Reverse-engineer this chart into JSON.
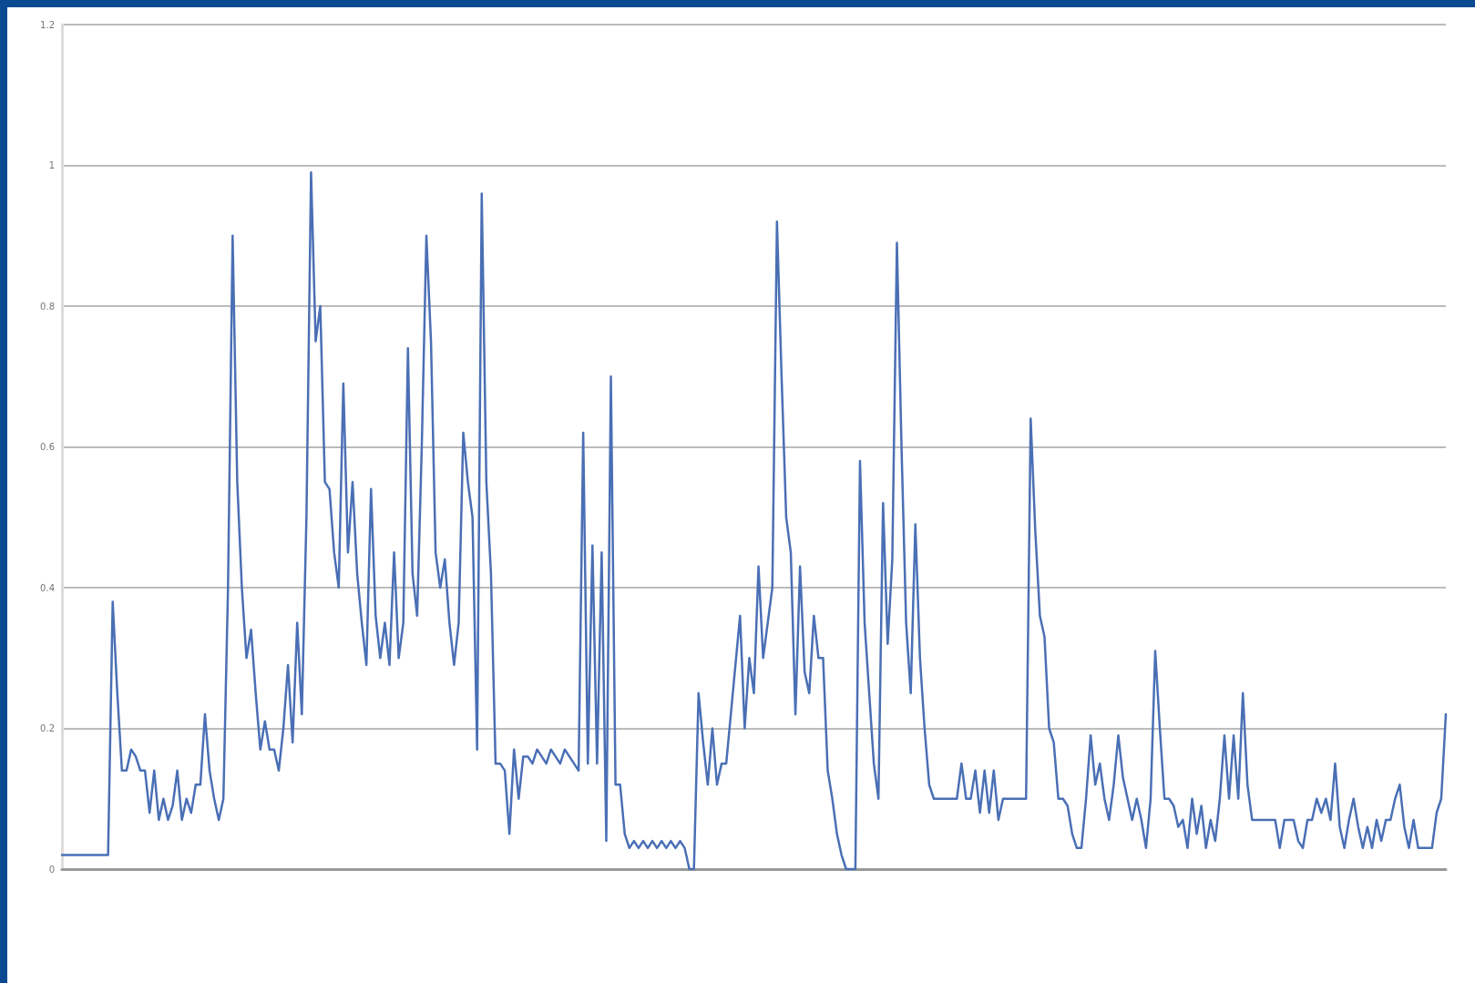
{
  "chart_data": {
    "type": "line",
    "categories": [
      null,
      null,
      null,
      null,
      null,
      null,
      null,
      null,
      null,
      null,
      null,
      null,
      null,
      null,
      null,
      null,
      null,
      null,
      null,
      null,
      null,
      null,
      null,
      null,
      null,
      null,
      null,
      null,
      null,
      null,
      null,
      null,
      null,
      null,
      null,
      null,
      null,
      null,
      null,
      null,
      null,
      null,
      null,
      null,
      null,
      null,
      null,
      null,
      null,
      null,
      null,
      null,
      null,
      null,
      null,
      null,
      null,
      null,
      null,
      null,
      null,
      null,
      null,
      null,
      null,
      null,
      null,
      null,
      null,
      null,
      null,
      null,
      null,
      null,
      null,
      null,
      null,
      null,
      null,
      null,
      null,
      null,
      null,
      null,
      null,
      null,
      null,
      null,
      null,
      null,
      null,
      null,
      null,
      null,
      null,
      null,
      null,
      null,
      null,
      null,
      null,
      null,
      null,
      null,
      null,
      null,
      null,
      null,
      null,
      null,
      null,
      null,
      null,
      null,
      null,
      null,
      null,
      null,
      null,
      null,
      null,
      null,
      null,
      null,
      null,
      null,
      null,
      null,
      null,
      null,
      null,
      null,
      null,
      null,
      null,
      null,
      null,
      null,
      null,
      null,
      null,
      null,
      null,
      null,
      null,
      null,
      null,
      null,
      null,
      null,
      null,
      null,
      null,
      null,
      null,
      null,
      null,
      null,
      null,
      null,
      null,
      null,
      null,
      null,
      null,
      null,
      null,
      null,
      null,
      null,
      null,
      null,
      null,
      null,
      null,
      null,
      null,
      null,
      null,
      null,
      null,
      null,
      null,
      null,
      null,
      null,
      null,
      null,
      null,
      null,
      null,
      null,
      null,
      null,
      null,
      null,
      null,
      null,
      null,
      null,
      null,
      null,
      null,
      null,
      null,
      null,
      null,
      null,
      null,
      null,
      null,
      null,
      null,
      null,
      null,
      null,
      null,
      null,
      null,
      null,
      null,
      null,
      null,
      null,
      null,
      null,
      null,
      null,
      null,
      null,
      null,
      null,
      null,
      null,
      null,
      null,
      null,
      null,
      null,
      null,
      null,
      null,
      null,
      null,
      null,
      null,
      null,
      null,
      null,
      null,
      null,
      null,
      null,
      null,
      null,
      null,
      null,
      null,
      null,
      null,
      null,
      null,
      null,
      null,
      null,
      null,
      null,
      null,
      null,
      null,
      null,
      null,
      null,
      null,
      null,
      null,
      null,
      null,
      null,
      null,
      null,
      null,
      null,
      null,
      null,
      null,
      null,
      null,
      null,
      null,
      null,
      null,
      null,
      null,
      null,
      null,
      null,
      null,
      null,
      null,
      null
    ],
    "series": [
      {
        "color": "#4a6fb5",
        "values": [
          0.02,
          0.02,
          0.02,
          0.02,
          0.02,
          0.02,
          0.02,
          0.02,
          0.02,
          0.02,
          0.02,
          0.38,
          0.25,
          0.14,
          0.14,
          0.17,
          0.16,
          0.14,
          0.14,
          0.08,
          0.14,
          0.07,
          0.1,
          0.07,
          0.09,
          0.14,
          0.07,
          0.1,
          0.08,
          0.12,
          0.12,
          0.22,
          0.14,
          0.1,
          0.07,
          0.1,
          0.4,
          0.9,
          0.55,
          0.4,
          0.3,
          0.34,
          0.25,
          0.17,
          0.21,
          0.17,
          0.17,
          0.14,
          0.2,
          0.29,
          0.18,
          0.35,
          0.22,
          0.5,
          0.99,
          0.75,
          0.8,
          0.55,
          0.54,
          0.45,
          0.4,
          0.69,
          0.45,
          0.55,
          0.42,
          0.35,
          0.29,
          0.54,
          0.36,
          0.3,
          0.35,
          0.29,
          0.45,
          0.3,
          0.35,
          0.74,
          0.42,
          0.36,
          0.6,
          0.9,
          0.75,
          0.45,
          0.4,
          0.44,
          0.35,
          0.29,
          0.35,
          0.62,
          0.55,
          0.5,
          0.17,
          0.96,
          0.55,
          0.42,
          0.15,
          0.15,
          0.14,
          0.05,
          0.17,
          0.1,
          0.16,
          0.16,
          0.15,
          0.17,
          0.16,
          0.15,
          0.17,
          0.16,
          0.15,
          0.17,
          0.16,
          0.15,
          0.14,
          0.62,
          0.15,
          0.46,
          0.15,
          0.45,
          0.04,
          0.7,
          0.12,
          0.12,
          0.05,
          0.03,
          0.04,
          0.03,
          0.04,
          0.03,
          0.04,
          0.03,
          0.04,
          0.03,
          0.04,
          0.03,
          0.04,
          0.03,
          0,
          0,
          0.25,
          0.18,
          0.12,
          0.2,
          0.12,
          0.15,
          0.15,
          0.22,
          0.29,
          0.36,
          0.2,
          0.3,
          0.25,
          0.43,
          0.3,
          0.35,
          0.4,
          0.92,
          0.7,
          0.5,
          0.45,
          0.22,
          0.43,
          0.28,
          0.25,
          0.36,
          0.3,
          0.3,
          0.14,
          0.1,
          0.05,
          0.02,
          0,
          0,
          0,
          0.58,
          0.35,
          0.25,
          0.15,
          0.1,
          0.52,
          0.32,
          0.44,
          0.89,
          0.6,
          0.35,
          0.25,
          0.49,
          0.3,
          0.2,
          0.12,
          0.1,
          0.1,
          0.1,
          0.1,
          0.1,
          0.1,
          0.15,
          0.1,
          0.1,
          0.14,
          0.08,
          0.14,
          0.08,
          0.14,
          0.07,
          0.1,
          0.1,
          0.1,
          0.1,
          0.1,
          0.1,
          0.64,
          0.48,
          0.36,
          0.33,
          0.2,
          0.18,
          0.1,
          0.1,
          0.09,
          0.05,
          0.03,
          0.03,
          0.1,
          0.19,
          0.12,
          0.15,
          0.1,
          0.07,
          0.12,
          0.19,
          0.13,
          0.1,
          0.07,
          0.1,
          0.07,
          0.03,
          0.1,
          0.31,
          0.2,
          0.1,
          0.1,
          0.09,
          0.06,
          0.07,
          0.03,
          0.1,
          0.05,
          0.09,
          0.03,
          0.07,
          0.04,
          0.1,
          0.19,
          0.1,
          0.19,
          0.1,
          0.25,
          0.12,
          0.07,
          0.07,
          0.07,
          0.07,
          0.07,
          0.07,
          0.03,
          0.07,
          0.07,
          0.07,
          0.04,
          0.03,
          0.07,
          0.07,
          0.1,
          0.08,
          0.1,
          0.07,
          0.15,
          0.06,
          0.03,
          0.07,
          0.1,
          0.06,
          0.03,
          0.06,
          0.03,
          0.07,
          0.04,
          0.07,
          0.07,
          0.1,
          0.12,
          0.06,
          0.03,
          0.07,
          0.03,
          0.03,
          0.03,
          0.03,
          0.08,
          0.1,
          0.22
        ]
      }
    ],
    "ylim": [
      0,
      1.2
    ],
    "yticks": [
      0,
      0.2,
      0.4,
      0.6,
      0.8,
      1,
      1.2
    ],
    "grid": "y",
    "marker": "none",
    "line_style": "solid"
  }
}
